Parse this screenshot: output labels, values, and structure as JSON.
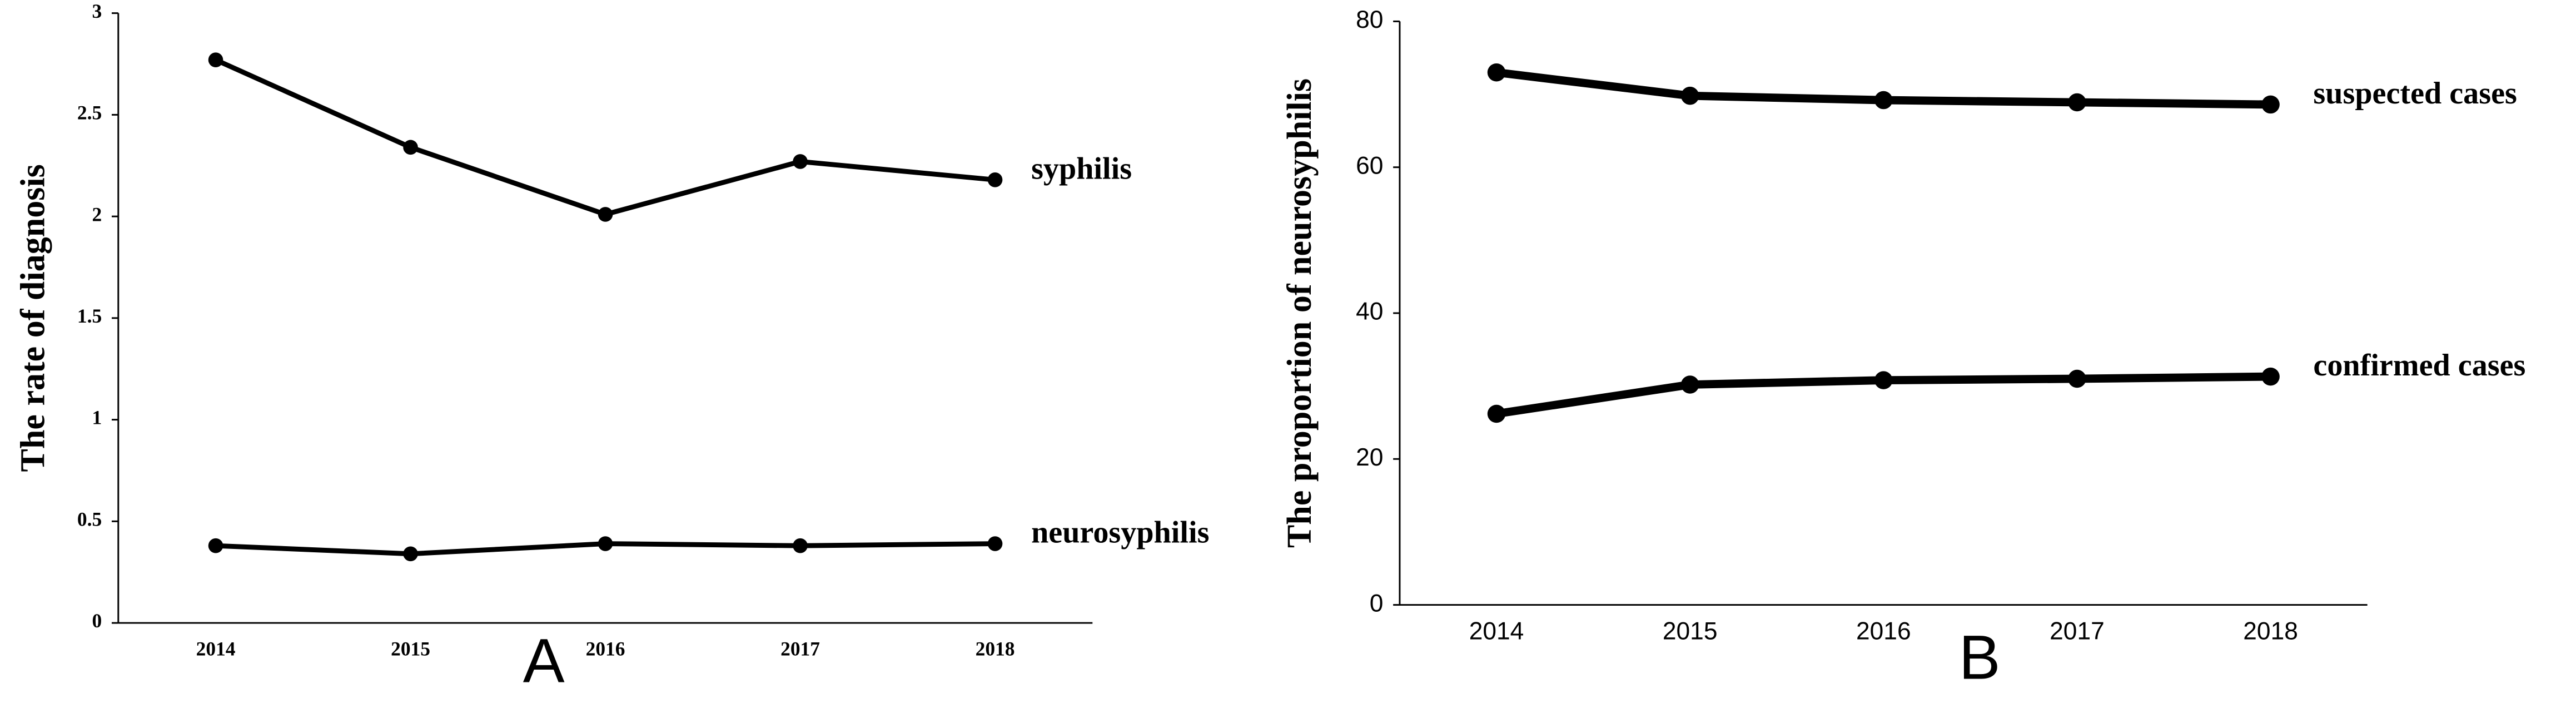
{
  "chart_data": [
    {
      "type": "line",
      "panel_label": "A",
      "y_label": "The rate of diagnosis",
      "categories": [
        "2014",
        "2015",
        "2016",
        "2017",
        "2018"
      ],
      "series": [
        {
          "name": "syphilis",
          "color": "#000000",
          "values": [
            2.77,
            2.34,
            2.01,
            2.27,
            2.18
          ]
        },
        {
          "name": "neurosyphilis",
          "color": "#000000",
          "values": [
            0.38,
            0.34,
            0.39,
            0.38,
            0.39
          ]
        }
      ],
      "ylim": [
        0,
        3
      ],
      "yticks": [
        0,
        0.5,
        1,
        1.5,
        2,
        2.5,
        3
      ],
      "grid": false
    },
    {
      "type": "line",
      "panel_label": "B",
      "y_label": "The proportion of neurosyphilis",
      "categories": [
        "2014",
        "2015",
        "2016",
        "2017",
        "2018"
      ],
      "series": [
        {
          "name": "suspected cases",
          "color": "#000000",
          "values": [
            73,
            69.8,
            69.2,
            68.9,
            68.6
          ]
        },
        {
          "name": "confirmed cases",
          "color": "#000000",
          "values": [
            26.2,
            30.2,
            30.8,
            31.0,
            31.3
          ]
        }
      ],
      "ylim": [
        0,
        80
      ],
      "yticks": [
        0,
        20,
        40,
        60,
        80
      ],
      "grid": false
    }
  ]
}
